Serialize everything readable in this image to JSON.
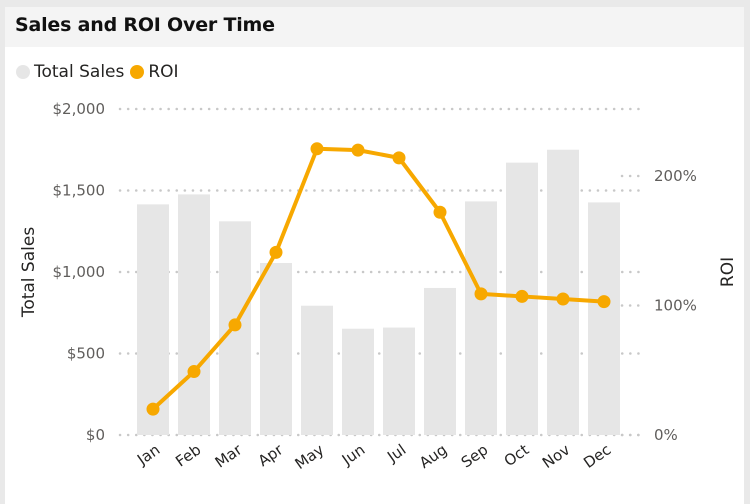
{
  "title": "Sales and ROI Over Time",
  "legend": [
    {
      "label": "Total Sales",
      "color": "#e6e6e6"
    },
    {
      "label": "ROI",
      "color": "#f7a800"
    }
  ],
  "colors": {
    "bar": "#e6e6e6",
    "line": "#f7a800",
    "grid": "#c8c8c8"
  },
  "chart_data": {
    "type": "bar+line",
    "title": "Sales and ROI Over Time",
    "categories": [
      "Jan",
      "Feb",
      "Mar",
      "Apr",
      "May",
      "Jun",
      "Jul",
      "Aug",
      "Sep",
      "Oct",
      "Nov",
      "Dec"
    ],
    "series": [
      {
        "name": "Total Sales",
        "type": "bar",
        "axis": "left",
        "values": [
          1415,
          1476,
          1311,
          1055,
          793,
          652,
          659,
          902,
          1433,
          1671,
          1750,
          1427
        ]
      },
      {
        "name": "ROI",
        "type": "line",
        "axis": "right",
        "unit": "%",
        "values": [
          20,
          49,
          85,
          141,
          221,
          220,
          214,
          172,
          109,
          107,
          105,
          103
        ]
      }
    ],
    "xlabel": "",
    "ylabel": "Total Sales",
    "y2label": "ROI",
    "ylim": [
      0,
      2000
    ],
    "y2lim": [
      0,
      240
    ],
    "yticks": [
      "$0",
      "$500",
      "$1,000",
      "$1,500",
      "$2,000"
    ],
    "y2ticks": [
      "0%",
      "100%",
      "200%"
    ],
    "grid": true,
    "legend_position": "top-left"
  }
}
